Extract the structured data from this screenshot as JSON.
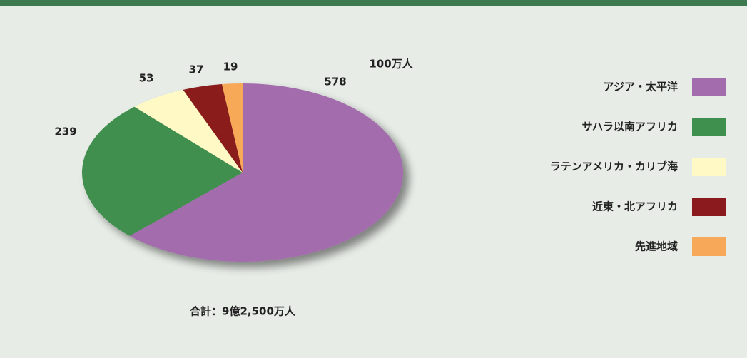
{
  "chart_data": {
    "type": "pie",
    "unit_label": "100万人",
    "total_label": "合計：9億2,500万人",
    "categories": [
      "アジア・太平洋",
      "サハラ以南アフリカ",
      "ラテンアメリカ・カリブ海",
      "近東・北アフリカ",
      "先進地域"
    ],
    "values": [
      578,
      239,
      53,
      37,
      19
    ],
    "colors": [
      "#a36cad",
      "#3f8f4f",
      "#fff9c6",
      "#8b1a1e",
      "#f7a959"
    ],
    "legend": "right"
  }
}
